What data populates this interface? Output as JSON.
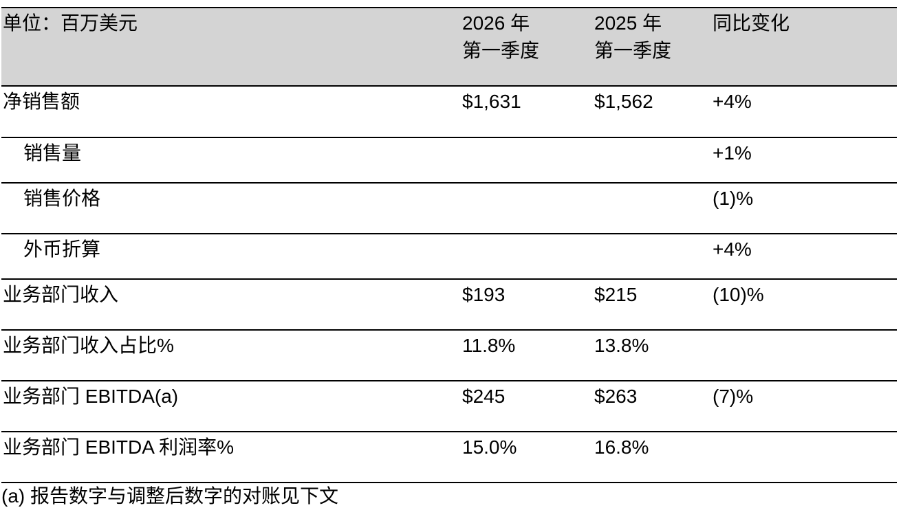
{
  "table": {
    "header": {
      "label": "单位：百万美元",
      "col1_line1": "2026 年",
      "col1_line2": "第一季度",
      "col2_line1": "2025 年",
      "col2_line2": "第一季度",
      "col3": "同比变化"
    },
    "rows": [
      {
        "label": "净销售额",
        "q1_2026": "$1,631",
        "q1_2025": "$1,562",
        "yoy": "+4%"
      },
      {
        "label": "销售量",
        "q1_2026": "",
        "q1_2025": "",
        "yoy": "+1%"
      },
      {
        "label": "销售价格",
        "q1_2026": "",
        "q1_2025": "",
        "yoy": "(1)%"
      },
      {
        "label": "外币折算",
        "q1_2026": "",
        "q1_2025": "",
        "yoy": "+4%"
      },
      {
        "label": "业务部门收入",
        "q1_2026": "$193",
        "q1_2025": "$215",
        "yoy": "(10)%"
      },
      {
        "label": "业务部门收入占比%",
        "q1_2026": "11.8%",
        "q1_2025": "13.8%",
        "yoy": ""
      },
      {
        "label": "业务部门 EBITDA(a)",
        "q1_2026": "$245",
        "q1_2025": "$263",
        "yoy": "(7)%"
      },
      {
        "label": "业务部门 EBITDA 利润率%",
        "q1_2026": "15.0%",
        "q1_2025": "16.8%",
        "yoy": ""
      }
    ]
  },
  "footnote": "(a) 报告数字与调整后数字的对账见下文"
}
